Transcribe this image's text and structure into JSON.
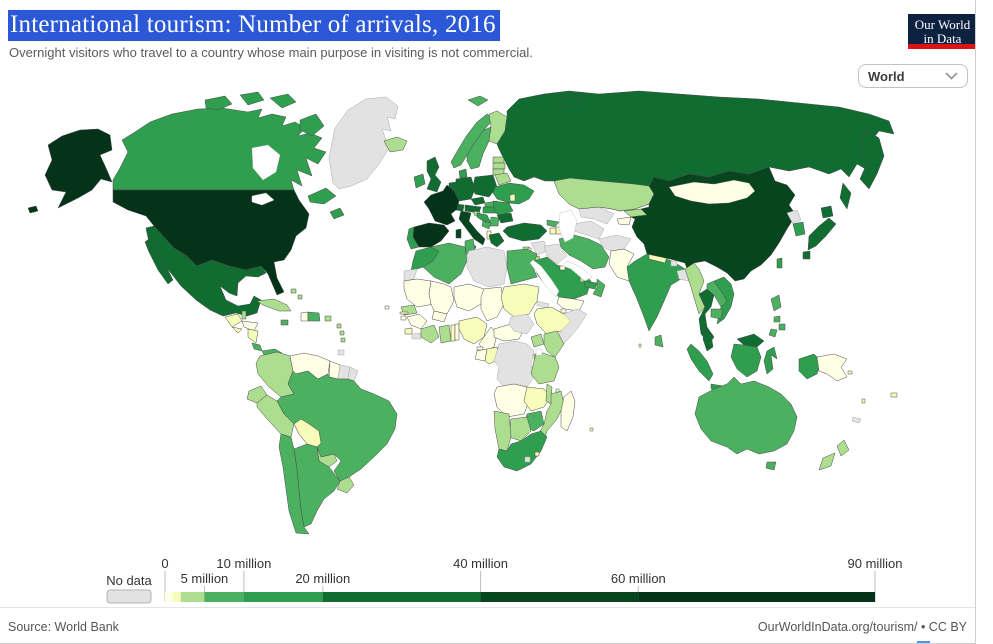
{
  "header": {
    "title": "International tourism: Number of arrivals, 2016",
    "subtitle": "Overnight visitors who travel to a country whose main purpose in visiting is not commercial.",
    "logo": {
      "line1": "Our World",
      "line2": "in Data"
    },
    "entity_selector": {
      "value": "World"
    }
  },
  "footer": {
    "source": "Source: World Bank",
    "attribution": "OurWorldInData.org/tourism/ • CC BY"
  },
  "colors": {
    "selection": "#2a58d6",
    "logo_bg": "#0d2240",
    "logo_red": "#dc1315",
    "ocean": "#ffffff",
    "border_stroke": "#4b4b4b",
    "nodata_border": "#a9a9a9"
  },
  "chart_data": {
    "type": "choropleth-map",
    "title": "International tourism: Number of arrivals, 2016",
    "unit": "arrivals per year",
    "year": 2016,
    "legend": {
      "no_data_label": "No data",
      "no_data_color": "#e2e2e2",
      "scale_min_label": "0",
      "scale_max": 90,
      "ticks_top": [
        {
          "label": "0",
          "value": 0
        },
        {
          "label": "10 million",
          "value": 10
        },
        {
          "label": "40 million",
          "value": 40
        },
        {
          "label": "90 million",
          "value": 90
        }
      ],
      "ticks_bottom": [
        {
          "label": "5 million",
          "value": 5
        },
        {
          "label": "20 million",
          "value": 20
        },
        {
          "label": "60 million",
          "value": 60
        }
      ],
      "bins": [
        {
          "min": 0,
          "max": 1,
          "unit": "million",
          "color": "#ffffe5"
        },
        {
          "min": 1,
          "max": 2,
          "unit": "million",
          "color": "#f7fcb9"
        },
        {
          "min": 2,
          "max": 5,
          "unit": "million",
          "color": "#addd8e"
        },
        {
          "min": 5,
          "max": 10,
          "unit": "million",
          "color": "#4cb061"
        },
        {
          "min": 10,
          "max": 20,
          "unit": "million",
          "color": "#2f9e4e"
        },
        {
          "min": 20,
          "max": 40,
          "unit": "million",
          "color": "#116c31"
        },
        {
          "min": 40,
          "max": 60,
          "unit": "million",
          "color": "#07451f"
        },
        {
          "min": 60,
          "max": 90,
          "unit": "million",
          "color": "#04331a"
        }
      ]
    },
    "countries": {
      "United States": 7,
      "Canada": 4,
      "Greenland": "no-data",
      "Mexico": 5,
      "Guatemala": 1,
      "Belize": 2,
      "Honduras": 0,
      "El Salvador": 1,
      "Nicaragua": 1,
      "Costa Rica": 3,
      "Panama": 3,
      "Cuba": 2,
      "Jamaica": 3,
      "Haiti": 0,
      "Dominican Republic": 3,
      "Puerto Rico": 2,
      "Bahamas": 2,
      "Lesser Antilles": 2,
      "Trinidad and Tobago": "no-data",
      "Colombia": 2,
      "Venezuela": 0,
      "Guyana": 0,
      "Suriname": "no-data",
      "French Guiana": "no-data",
      "Ecuador": 2,
      "Peru": 2,
      "Brazil": 3,
      "Bolivia": 1,
      "Paraguay": 2,
      "Chile": 3,
      "Argentina": 3,
      "Uruguay": 2,
      "Iceland": 2,
      "Ireland": 4,
      "United Kingdom": 5,
      "Portugal": 4,
      "Spain": 7,
      "France": 7,
      "Belgium": 5,
      "Netherlands": 5,
      "Germany": 5,
      "Denmark": 4,
      "Norway": 3,
      "Sweden": 3,
      "Finland": 2,
      "Estonia": 2,
      "Latvia": 2,
      "Lithuania": 2,
      "Poland": 5,
      "Czechia": 5,
      "Slovakia": 3,
      "Austria": 5,
      "Switzerland": 5,
      "Italy": 6,
      "Slovenia": 2,
      "Croatia": 4,
      "Bosnia and Herzegovina": 3,
      "Serbia": 3,
      "Albania": 1,
      "Greece": 5,
      "Hungary": 4,
      "Romania": 4,
      "Bulgaria": 5,
      "Ukraine": 4,
      "Belarus": 2,
      "Moldova": 1,
      "Russia": 5,
      "Turkey": 5,
      "Georgia": 3,
      "Armenia": 1,
      "Azerbaijan": 1,
      "Cyprus": 2,
      "Syria": "no-data",
      "Lebanon": 1,
      "Israel": 2,
      "Jordan": 2,
      "Iraq": "no-data",
      "Saudi Arabia": 4,
      "Kuwait": 0,
      "Qatar": 2,
      "United Arab Emirates": 4,
      "Oman": 3,
      "Yemen": 0,
      "Iran": 3,
      "Turkmenistan": "no-data",
      "Uzbekistan": "no-data",
      "Kazakhstan": 2,
      "Kyrgyzstan": 2,
      "Tajikistan": 0,
      "Afghanistan": "no-data",
      "Pakistan": 0,
      "India": 4,
      "Nepal": 1,
      "Bhutan": "no-data",
      "Bangladesh": "no-data",
      "Sri Lanka": 3,
      "China": 6,
      "Mongolia": 0,
      "Taiwan": 4,
      "North Korea": "no-data",
      "South Korea": 4,
      "Japan": 5,
      "Myanmar": 2,
      "Thailand": 5,
      "Laos": 3,
      "Vietnam": 4,
      "Cambodia": 3,
      "Malaysia": 5,
      "Indonesia": 4,
      "Philippines": 3,
      "Timor": "no-data",
      "Papua New Guinea": 0,
      "Morocco": 4,
      "Western Sahara": "no-data",
      "Algeria": 3,
      "Tunisia": 3,
      "Libya": "no-data",
      "Egypt": 3,
      "Mauritania": 0,
      "Mali": 0,
      "Burkina Faso": 0,
      "Niger": 0,
      "Chad": 0,
      "Sudan": 1,
      "Eritrea": "no-data",
      "Ethiopia": 1,
      "Somalia": "no-data",
      "Djibouti": 0,
      "Senegal": 2,
      "Gambia": 1,
      "Guinea-Bissau": 0,
      "Guinea": 0,
      "Sierra Leone": 1,
      "Liberia": "no-data",
      "Cote d'Ivoire": 2,
      "Ghana": 2,
      "Togo": 1,
      "Benin": 0,
      "Nigeria": 1,
      "Cameroon": 0,
      "Central African Republic": 0,
      "South Sudan": "no-data",
      "Uganda": 2,
      "Kenya": 2,
      "Gabon": 0,
      "Congo": 1,
      "Democratic Republic of Congo": "no-data",
      "Rwanda": 2,
      "Burundi": "no-data",
      "Tanzania": 2,
      "Angola": 0,
      "Zambia": 1,
      "Malawi": 2,
      "Mozambique": 2,
      "Zimbabwe": 3,
      "Botswana": 2,
      "Namibia": 2,
      "South Africa": 4,
      "Lesotho": "no-data",
      "Eswatini": 1,
      "Madagascar": 0,
      "Equatorial Guinea": 0,
      "Comoros": 0,
      "Mauritius": 1,
      "Maldives": 1,
      "Cape Verde": 0,
      "Australia": 3,
      "New Zealand": 2,
      "Fiji": 1,
      "New Caledonia": "no-data",
      "Vanuatu": 1,
      "Solomon Islands": 1
    }
  }
}
